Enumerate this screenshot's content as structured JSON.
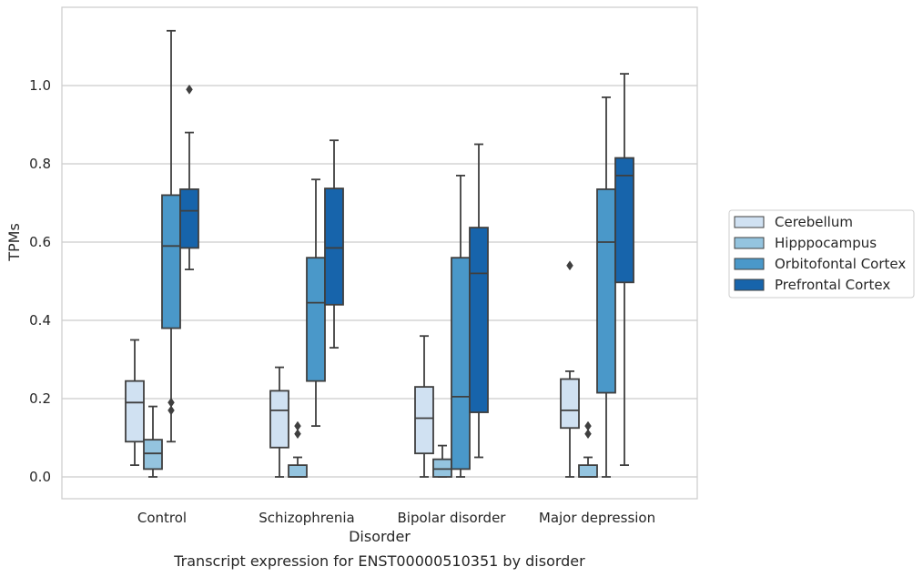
{
  "chart_data": {
    "type": "box",
    "xlabel": "Disorder",
    "ylabel": "TPMs",
    "caption": "Transcript expression for ENST00000510351 by disorder",
    "ylim": [
      -0.055,
      1.205
    ],
    "yticks": [
      0.0,
      0.2,
      0.4,
      0.6,
      0.8,
      1.0
    ],
    "ytick_labels": [
      "0.0",
      "0.2",
      "0.4",
      "0.6",
      "0.8",
      "1.0"
    ],
    "grid": "horizontal",
    "legend_position": "right",
    "categories": [
      "Control",
      "Schizophrenia",
      "Bipolar disorder",
      "Major depression"
    ],
    "series": [
      {
        "name": "Cerebellum",
        "color": "#d0e1f2",
        "boxes": [
          {
            "min": 0.03,
            "q1": 0.09,
            "median": 0.19,
            "q3": 0.245,
            "max": 0.35,
            "outliers": []
          },
          {
            "min": 0.0,
            "q1": 0.075,
            "median": 0.17,
            "q3": 0.22,
            "max": 0.28,
            "outliers": []
          },
          {
            "min": 0.0,
            "q1": 0.06,
            "median": 0.15,
            "q3": 0.23,
            "max": 0.36,
            "outliers": []
          },
          {
            "min": 0.0,
            "q1": 0.125,
            "median": 0.17,
            "q3": 0.25,
            "max": 0.27,
            "outliers": [
              0.54
            ]
          }
        ]
      },
      {
        "name": "Hipppocampus",
        "color": "#94c4df",
        "boxes": [
          {
            "min": 0.0,
            "q1": 0.02,
            "median": 0.06,
            "q3": 0.095,
            "max": 0.18,
            "outliers": []
          },
          {
            "min": 0.0,
            "q1": 0.0,
            "median": 0.0,
            "q3": 0.03,
            "max": 0.05,
            "outliers": [
              0.11,
              0.13
            ]
          },
          {
            "min": 0.0,
            "q1": 0.0,
            "median": 0.02,
            "q3": 0.045,
            "max": 0.08,
            "outliers": []
          },
          {
            "min": 0.0,
            "q1": 0.0,
            "median": 0.0,
            "q3": 0.03,
            "max": 0.05,
            "outliers": [
              0.11,
              0.13
            ]
          }
        ]
      },
      {
        "name": "Orbitofontal Cortex",
        "color": "#4a98c9",
        "boxes": [
          {
            "min": 0.09,
            "q1": 0.38,
            "median": 0.59,
            "q3": 0.72,
            "max": 1.14,
            "outliers": [
              0.17,
              0.19
            ]
          },
          {
            "min": 0.13,
            "q1": 0.245,
            "median": 0.445,
            "q3": 0.56,
            "max": 0.76,
            "outliers": []
          },
          {
            "min": 0.0,
            "q1": 0.02,
            "median": 0.205,
            "q3": 0.56,
            "max": 0.77,
            "outliers": []
          },
          {
            "min": 0.0,
            "q1": 0.215,
            "median": 0.6,
            "q3": 0.735,
            "max": 0.97,
            "outliers": []
          }
        ]
      },
      {
        "name": "Prefrontal Cortex",
        "color": "#1764ab",
        "boxes": [
          {
            "min": 0.53,
            "q1": 0.585,
            "median": 0.68,
            "q3": 0.735,
            "max": 0.88,
            "outliers": [
              0.99
            ]
          },
          {
            "min": 0.33,
            "q1": 0.44,
            "median": 0.585,
            "q3": 0.737,
            "max": 0.86,
            "outliers": []
          },
          {
            "min": 0.05,
            "q1": 0.165,
            "median": 0.52,
            "q3": 0.637,
            "max": 0.85,
            "outliers": []
          },
          {
            "min": 0.03,
            "q1": 0.497,
            "median": 0.77,
            "q3": 0.815,
            "max": 1.03,
            "outliers": []
          }
        ]
      }
    ]
  }
}
